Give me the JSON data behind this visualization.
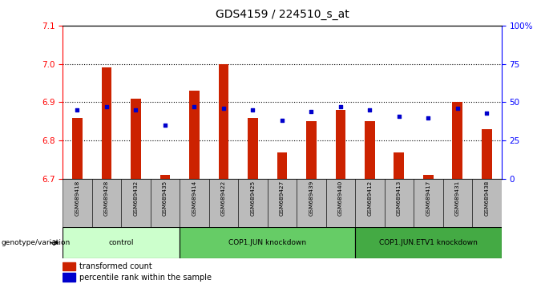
{
  "title": "GDS4159 / 224510_s_at",
  "samples": [
    "GSM689418",
    "GSM689428",
    "GSM689432",
    "GSM689435",
    "GSM689414",
    "GSM689422",
    "GSM689425",
    "GSM689427",
    "GSM689439",
    "GSM689440",
    "GSM689412",
    "GSM689413",
    "GSM689417",
    "GSM689431",
    "GSM689438"
  ],
  "bar_values": [
    6.86,
    6.99,
    6.91,
    6.71,
    6.93,
    7.0,
    6.86,
    6.77,
    6.85,
    6.88,
    6.85,
    6.77,
    6.71,
    6.9,
    6.83
  ],
  "percentile_values": [
    45,
    47,
    45,
    35,
    47,
    46,
    45,
    38,
    44,
    47,
    45,
    41,
    40,
    46,
    43
  ],
  "baseline": 6.7,
  "ylim_left": [
    6.7,
    7.1
  ],
  "ylim_right": [
    0,
    100
  ],
  "yticks_left": [
    6.7,
    6.8,
    6.9,
    7.0,
    7.1
  ],
  "yticks_right": [
    0,
    25,
    50,
    75,
    100
  ],
  "ytick_labels_right": [
    "0",
    "25",
    "50",
    "75",
    "100%"
  ],
  "groups": [
    {
      "label": "control",
      "indices": [
        0,
        1,
        2,
        3
      ]
    },
    {
      "label": "COP1.JUN knockdown",
      "indices": [
        4,
        5,
        6,
        7,
        8,
        9
      ]
    },
    {
      "label": "COP1.JUN.ETV1 knockdown",
      "indices": [
        10,
        11,
        12,
        13,
        14
      ]
    }
  ],
  "group_colors": [
    "#ccffcc",
    "#66cc66",
    "#44aa44"
  ],
  "bar_color": "#cc2200",
  "dot_color": "#0000cc",
  "bar_width": 0.35,
  "background_color": "#ffffff",
  "tick_area_color": "#bbbbbb",
  "group_label_text": "genotype/variation",
  "legend_items": [
    "transformed count",
    "percentile rank within the sample"
  ]
}
